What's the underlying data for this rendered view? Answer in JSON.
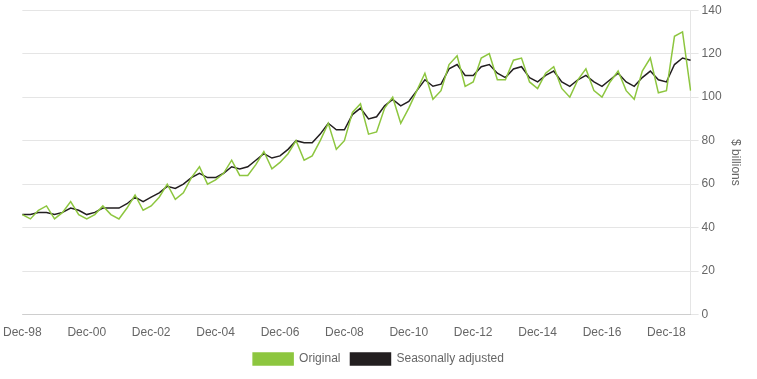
{
  "chart_data": {
    "type": "line",
    "ylabel": "$ billions",
    "categories": [
      "Dec-98",
      null,
      null,
      null,
      null,
      null,
      null,
      null,
      "Dec-00",
      null,
      null,
      null,
      null,
      null,
      null,
      null,
      "Dec-02",
      null,
      null,
      null,
      null,
      null,
      null,
      null,
      "Dec-04",
      null,
      null,
      null,
      null,
      null,
      null,
      null,
      "Dec-06",
      null,
      null,
      null,
      null,
      null,
      null,
      null,
      "Dec-08",
      null,
      null,
      null,
      null,
      null,
      null,
      null,
      "Dec-10",
      null,
      null,
      null,
      null,
      null,
      null,
      null,
      "Dec-12",
      null,
      null,
      null,
      null,
      null,
      null,
      null,
      "Dec-14",
      null,
      null,
      null,
      null,
      null,
      null,
      null,
      "Dec-16",
      null,
      null,
      null,
      null,
      null,
      null,
      null,
      "Dec-18",
      null,
      null,
      null
    ],
    "series": [
      {
        "name": "Original",
        "color": "#8DC63F",
        "values": [
          46,
          44,
          48,
          50,
          44,
          47,
          52,
          46,
          44,
          46,
          50,
          46,
          44,
          49,
          55,
          48,
          50,
          54,
          60,
          53,
          56,
          63,
          68,
          60,
          62,
          65,
          71,
          64,
          64,
          69,
          75,
          67,
          70,
          74,
          80,
          71,
          73,
          80,
          88,
          76,
          80,
          93,
          97,
          83,
          84,
          95,
          100,
          88,
          95,
          103,
          111,
          99,
          103,
          115,
          119,
          105,
          107,
          118,
          120,
          108,
          108,
          117,
          118,
          107,
          104,
          111,
          114,
          104,
          100,
          108,
          113,
          103,
          100,
          107,
          112,
          103,
          99,
          112,
          118,
          102,
          103,
          128,
          130,
          103
        ]
      },
      {
        "name": "Seasonally adjusted",
        "color": "#231F20",
        "values": [
          46,
          46,
          47,
          47,
          46,
          47,
          49,
          48,
          46,
          47,
          49,
          49,
          49,
          51,
          54,
          52,
          54,
          56,
          59,
          58,
          60,
          63,
          65,
          63,
          63,
          65,
          68,
          67,
          68,
          71,
          74,
          72,
          73,
          76,
          80,
          79,
          79,
          83,
          88,
          85,
          85,
          92,
          95,
          90,
          91,
          96,
          99,
          96,
          98,
          103,
          108,
          105,
          106,
          113,
          115,
          110,
          110,
          114,
          115,
          111,
          109,
          113,
          114,
          109,
          107,
          110,
          112,
          107,
          105,
          108,
          110,
          107,
          105,
          108,
          111,
          107,
          105,
          109,
          112,
          108,
          107,
          115,
          118,
          117
        ]
      }
    ],
    "ylim": [
      0,
      140
    ],
    "yticks": [
      0,
      20,
      40,
      60,
      80,
      100,
      120,
      140
    ],
    "grid": true,
    "legend": "bottom"
  }
}
